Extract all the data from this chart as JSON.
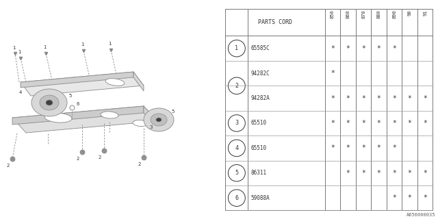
{
  "footer": "A656000035",
  "table": {
    "col_header": "PARTS CORD",
    "year_cols": [
      "850",
      "860",
      "870",
      "880",
      "890",
      "90",
      "91"
    ],
    "display_rows": [
      {
        "num": "1",
        "part": "65585C",
        "stars": [
          1,
          1,
          1,
          1,
          1,
          0,
          0
        ],
        "span": 1,
        "first": true
      },
      {
        "num": "2",
        "part": "94282C",
        "stars": [
          1,
          0,
          0,
          0,
          0,
          0,
          0
        ],
        "span": 2,
        "first": true
      },
      {
        "num": "",
        "part": "94282A",
        "stars": [
          1,
          1,
          1,
          1,
          1,
          1,
          1
        ],
        "span": 2,
        "first": false
      },
      {
        "num": "3",
        "part": "65510",
        "stars": [
          1,
          1,
          1,
          1,
          1,
          1,
          1
        ],
        "span": 1,
        "first": true
      },
      {
        "num": "4",
        "part": "65510",
        "stars": [
          1,
          1,
          1,
          1,
          1,
          0,
          0
        ],
        "span": 1,
        "first": true
      },
      {
        "num": "5",
        "part": "86311",
        "stars": [
          0,
          1,
          1,
          1,
          1,
          1,
          1
        ],
        "span": 1,
        "first": true
      },
      {
        "num": "6",
        "part": "59088A",
        "stars": [
          0,
          0,
          0,
          0,
          1,
          1,
          1
        ],
        "span": 1,
        "first": true
      }
    ]
  },
  "bg_color": "#ffffff",
  "line_color": "#888888",
  "text_color": "#333333"
}
